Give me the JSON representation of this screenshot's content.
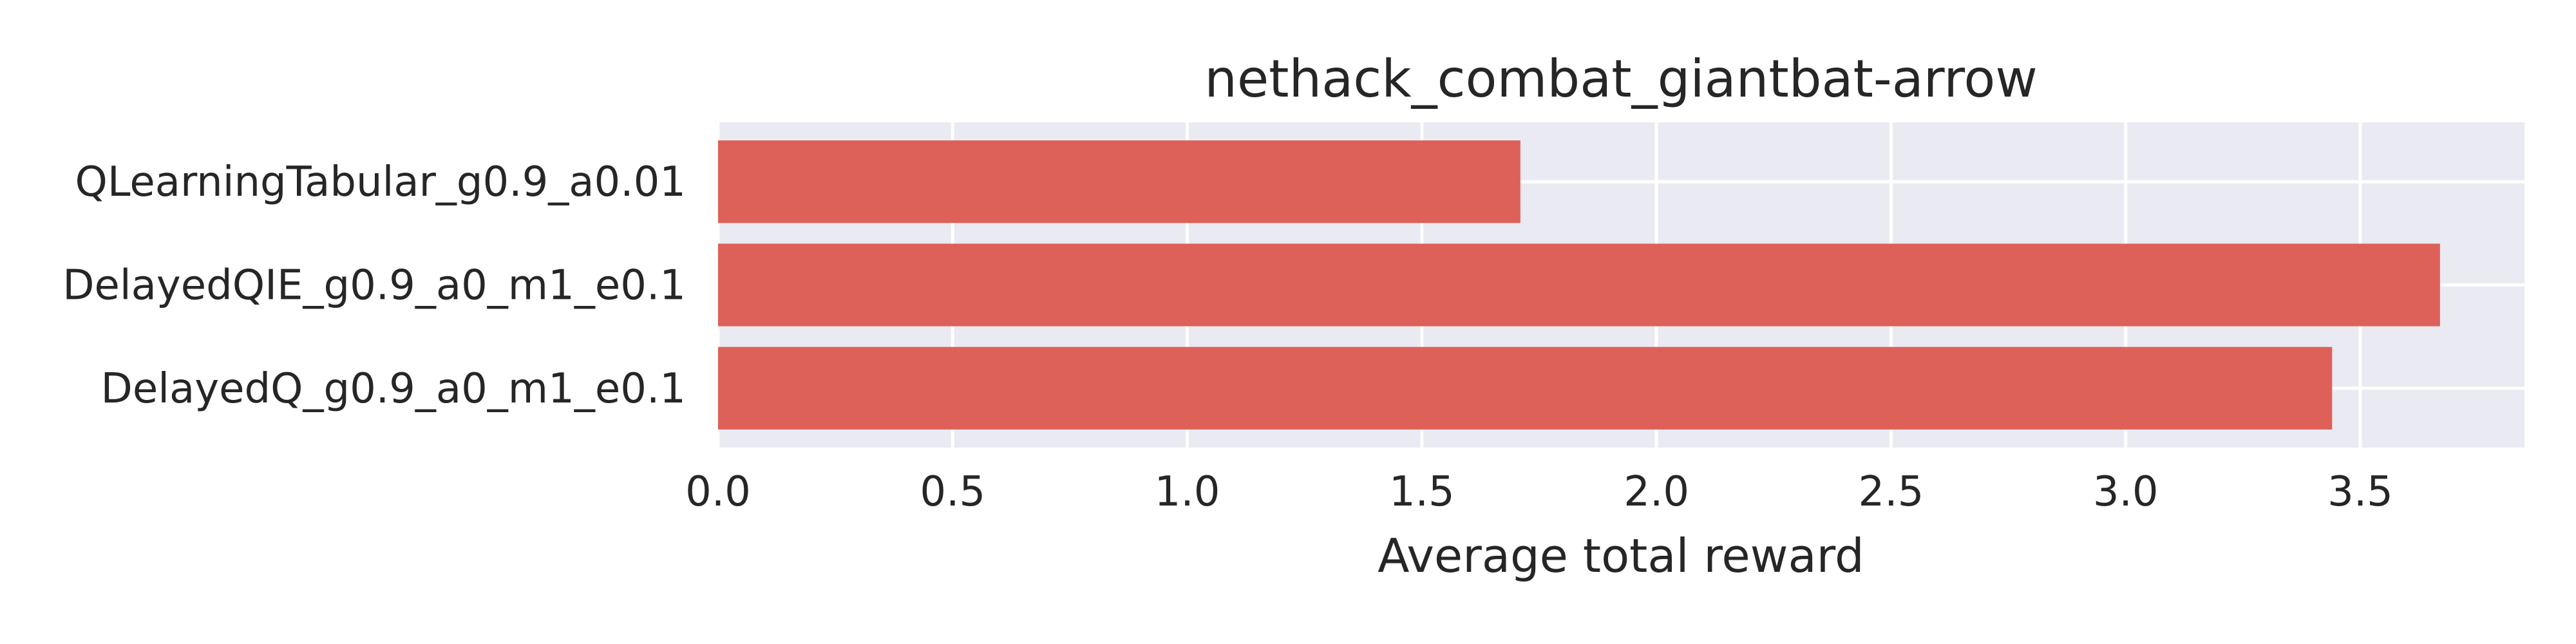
{
  "chart_data": {
    "type": "bar",
    "orientation": "horizontal",
    "title": "nethack_combat_giantbat-arrow",
    "xlabel": "Average total reward",
    "ylabel": "",
    "categories": [
      "QLearningTabular_g0.9_a0.01",
      "DelayedQIE_g0.9_a0_m1_e0.1",
      "DelayedQ_g0.9_a0_m1_e0.1"
    ],
    "values": [
      1.71,
      3.67,
      3.44
    ],
    "xlim": [
      0,
      3.85
    ],
    "xticks": [
      0.0,
      0.5,
      1.0,
      1.5,
      2.0,
      2.5,
      3.0,
      3.5
    ],
    "xtick_labels": [
      "0.0",
      "0.5",
      "1.0",
      "1.5",
      "2.0",
      "2.5",
      "3.0",
      "3.5"
    ],
    "grid": true,
    "legend": "none",
    "colors": {
      "bar": "#dd6159",
      "plot_background": "#eaeaf2",
      "grid": "#ffffff",
      "text": "#262626"
    }
  }
}
